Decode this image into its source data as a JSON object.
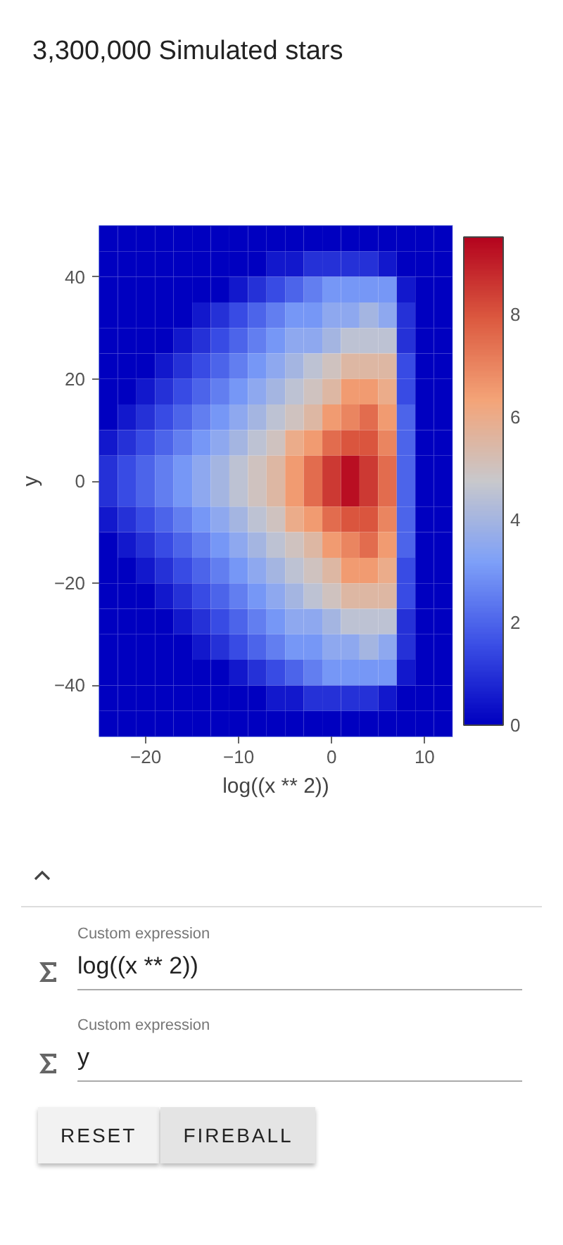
{
  "chart_data": {
    "type": "heatmap",
    "title": "3,300,000 Simulated stars",
    "xlabel": "log((x ** 2))",
    "ylabel": "y",
    "x": [
      -24,
      -22,
      -20,
      -18,
      -16,
      -14,
      -12,
      -10,
      -8,
      -6,
      -4,
      -2,
      0,
      2,
      4,
      6,
      8,
      10,
      12
    ],
    "y": [
      47.5,
      42.5,
      37.5,
      32.5,
      27.5,
      22.5,
      17.5,
      12.5,
      7.5,
      2.5,
      -2.5,
      -7.5,
      -12.5,
      -17.5,
      -22.5,
      -27.5,
      -32.5,
      -37.5,
      -42.5,
      -47.5
    ],
    "cells": [
      [
        0,
        0,
        0,
        0,
        0,
        0,
        0,
        0,
        0,
        0,
        0,
        0,
        0,
        0,
        0,
        0,
        0,
        0,
        0
      ],
      [
        0,
        0,
        0,
        0,
        0,
        0,
        0,
        0,
        0,
        0.5,
        0.5,
        1,
        1,
        1,
        1,
        0.5,
        0,
        0,
        0
      ],
      [
        0,
        0,
        0,
        0,
        0,
        0,
        0,
        0.5,
        1,
        1.5,
        2,
        2.5,
        3,
        3,
        3,
        3,
        0.5,
        0,
        0
      ],
      [
        0,
        0,
        0,
        0,
        0,
        0.5,
        1,
        1.5,
        2,
        2.5,
        3,
        3,
        3.5,
        3.5,
        4,
        3.5,
        1,
        0,
        0
      ],
      [
        0,
        0,
        0,
        0,
        0.5,
        1,
        1.5,
        2,
        2.5,
        3,
        3.5,
        3.5,
        4,
        4.5,
        4.5,
        4.5,
        1,
        0,
        0
      ],
      [
        0,
        0,
        0,
        0.5,
        1,
        1.5,
        2,
        2.5,
        3,
        3.5,
        4,
        4.5,
        5,
        5.5,
        5.5,
        5.5,
        1.5,
        0,
        0
      ],
      [
        0,
        0,
        0.5,
        1,
        1.5,
        2,
        2.5,
        3,
        3.5,
        4,
        4.5,
        5,
        5.5,
        6.5,
        6.5,
        6,
        1.5,
        0,
        0
      ],
      [
        0,
        0.5,
        1,
        1.5,
        2,
        2.5,
        3,
        3.5,
        4,
        4.5,
        5,
        5.5,
        6.5,
        7,
        7.5,
        6.5,
        2,
        0,
        0
      ],
      [
        0.5,
        1,
        1.5,
        2,
        2.5,
        3,
        3.5,
        4,
        4.5,
        5,
        6,
        6.5,
        7.5,
        8,
        8,
        7,
        2,
        0,
        0
      ],
      [
        1,
        1.5,
        2,
        2.5,
        3,
        3.5,
        4,
        4.5,
        5,
        5.5,
        6.5,
        7.5,
        8.5,
        9.3,
        8.5,
        7.5,
        2,
        0,
        0
      ],
      [
        1,
        1.5,
        2,
        2.5,
        3,
        3.5,
        4,
        4.5,
        5,
        5.5,
        6.5,
        7.5,
        8.5,
        9.3,
        8.5,
        7.5,
        2,
        0,
        0
      ],
      [
        0.5,
        1,
        1.5,
        2,
        2.5,
        3,
        3.5,
        4,
        4.5,
        5,
        6,
        6.5,
        7.5,
        8,
        8,
        7,
        2,
        0,
        0
      ],
      [
        0,
        0.5,
        1,
        1.5,
        2,
        2.5,
        3,
        3.5,
        4,
        4.5,
        5,
        5.5,
        6.5,
        7,
        7.5,
        6.5,
        2,
        0,
        0
      ],
      [
        0,
        0,
        0.5,
        1,
        1.5,
        2,
        2.5,
        3,
        3.5,
        4,
        4.5,
        5,
        5.5,
        6.5,
        6.5,
        6,
        1.5,
        0,
        0
      ],
      [
        0,
        0,
        0,
        0.5,
        1,
        1.5,
        2,
        2.5,
        3,
        3.5,
        4,
        4.5,
        5,
        5.5,
        5.5,
        5.5,
        1.5,
        0,
        0
      ],
      [
        0,
        0,
        0,
        0,
        0.5,
        1,
        1.5,
        2,
        2.5,
        3,
        3.5,
        3.5,
        4,
        4.5,
        4.5,
        4.5,
        1,
        0,
        0
      ],
      [
        0,
        0,
        0,
        0,
        0,
        0.5,
        1,
        1.5,
        2,
        2.5,
        3,
        3,
        3.5,
        3.5,
        4,
        3.5,
        1,
        0,
        0
      ],
      [
        0,
        0,
        0,
        0,
        0,
        0,
        0,
        0.5,
        1,
        1.5,
        2,
        2.5,
        3,
        3,
        3,
        3,
        0.5,
        0,
        0
      ],
      [
        0,
        0,
        0,
        0,
        0,
        0,
        0,
        0,
        0,
        0.5,
        0.5,
        1,
        1,
        1,
        1,
        0.5,
        0,
        0,
        0
      ],
      [
        0,
        0,
        0,
        0,
        0,
        0,
        0,
        0,
        0,
        0,
        0,
        0,
        0,
        0,
        0,
        0,
        0,
        0,
        0
      ]
    ],
    "xlim": [
      -25,
      13
    ],
    "ylim": [
      -50,
      50
    ],
    "xticks": [
      {
        "value": -20,
        "label": "−20"
      },
      {
        "value": -10,
        "label": "−10"
      },
      0,
      10
    ],
    "yticks": [
      {
        "value": -40,
        "label": "−40"
      },
      {
        "value": -20,
        "label": "−20"
      },
      0,
      20,
      40
    ],
    "clim": [
      0,
      9.5
    ],
    "cticks": [
      0,
      2,
      4,
      6,
      8
    ],
    "annotations": [
      "Custom expression",
      "log((x ** 2))",
      "Custom expression",
      "y",
      "RESET",
      "FIREBALL"
    ]
  }
}
